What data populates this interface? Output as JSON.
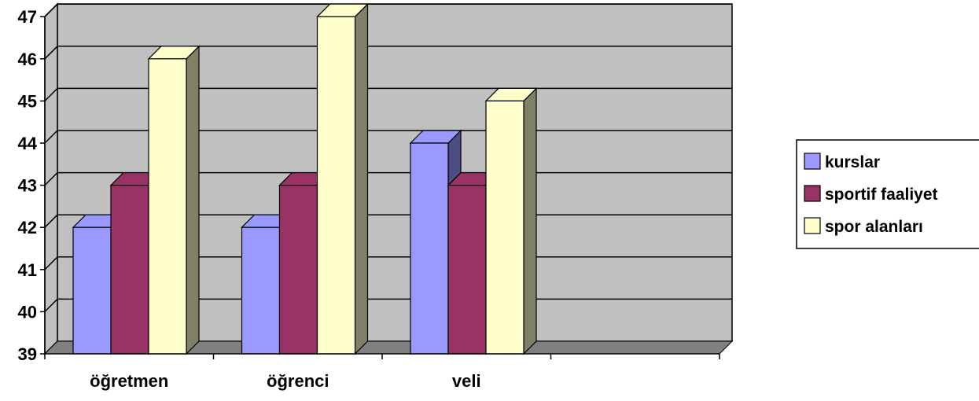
{
  "chart_data": {
    "type": "bar",
    "categories": [
      "öğretmen",
      "öğrenci",
      "veli",
      ""
    ],
    "series": [
      {
        "name": "kurslar",
        "values": [
          42,
          42,
          44,
          null
        ]
      },
      {
        "name": "sportif faaliyet",
        "values": [
          43,
          43,
          43,
          null
        ]
      },
      {
        "name": "spor alanları",
        "values": [
          46,
          47,
          45,
          null
        ]
      }
    ],
    "title": "",
    "xlabel": "",
    "ylabel": "",
    "ylim": [
      39,
      47
    ],
    "yticks": [
      "39",
      "40",
      "41",
      "42",
      "43",
      "44",
      "45",
      "46",
      "47"
    ],
    "grid": true,
    "legend_position": "right",
    "style": "3d-clustered-column"
  },
  "colors": {
    "series": [
      "#9999FF",
      "#993366",
      "#FFFFCC"
    ],
    "series_dark": [
      "#4D4D85",
      "#5C1F3D",
      "#808066"
    ],
    "wall": "#C0C0C0",
    "floor": "#808080",
    "gridline": "#000000"
  }
}
